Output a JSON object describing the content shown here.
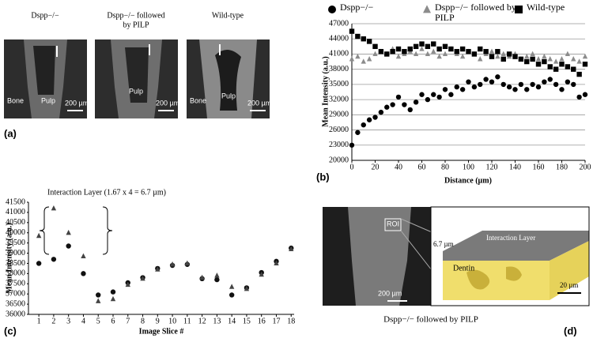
{
  "panel_a": {
    "label": "(a)",
    "images": [
      {
        "title": [
          "Dspp−/−"
        ],
        "bone": "Bone",
        "pulp": "Pulp",
        "scale": "200 µm"
      },
      {
        "title": [
          "Dspp−/− followed",
          "by PILP"
        ],
        "pulp": "Pulp",
        "scale": "200 µm"
      },
      {
        "title": [
          "Wild-type"
        ],
        "bone": "Bone",
        "pulp": "Pulp",
        "scale": "200 µm"
      }
    ]
  },
  "panel_d": {
    "label": "(d)",
    "roi": "ROI",
    "thickness": "6.7 µm",
    "layer": "Interaction  Layer",
    "dentin": "Dentin",
    "scale_left": "200 µm",
    "scale_right": "20 µm",
    "caption": "Dspp−/− followed by PILP"
  },
  "chart_data": [
    {
      "type": "scatter",
      "panel_label": "(b)",
      "x_label": "Distance (µm)",
      "y_label": "Mean Intensity (a.u.)",
      "x": [
        0,
        5,
        10,
        15,
        20,
        25,
        30,
        35,
        40,
        45,
        50,
        55,
        60,
        65,
        70,
        75,
        80,
        85,
        90,
        95,
        100,
        105,
        110,
        115,
        120,
        125,
        130,
        135,
        140,
        145,
        150,
        155,
        160,
        165,
        170,
        175,
        180,
        185,
        190,
        195,
        200
      ],
      "xlim": [
        0,
        200
      ],
      "xticks": [
        0,
        20,
        40,
        60,
        80,
        100,
        120,
        140,
        160,
        180,
        200
      ],
      "ylim": [
        20000,
        47000
      ],
      "yticks": [
        20000,
        23000,
        26000,
        29000,
        32000,
        35000,
        38000,
        41000,
        44000,
        47000
      ],
      "grid": true,
      "series": [
        {
          "name": "Dspp−/−",
          "color": "#000000",
          "marker": "circle",
          "values": [
            23000,
            25500,
            27000,
            28000,
            28500,
            29500,
            30500,
            31000,
            32500,
            31000,
            30000,
            31500,
            33000,
            32000,
            33000,
            32500,
            34000,
            33000,
            34500,
            34000,
            35500,
            34500,
            35000,
            36000,
            35500,
            36500,
            35000,
            34500,
            34000,
            35000,
            34000,
            35000,
            34500,
            35500,
            36000,
            35000,
            34000,
            35500,
            35000,
            32500,
            33000
          ]
        },
        {
          "name": "Dspp−/− followed by PILP",
          "color": "#8c8c8c",
          "marker": "triangle",
          "values": [
            40000,
            40500,
            39500,
            40000,
            41000,
            41500,
            41000,
            42000,
            40500,
            41000,
            41500,
            41000,
            42000,
            41000,
            41500,
            40500,
            41000,
            42000,
            41000,
            40500,
            41500,
            41000,
            40000,
            41000,
            41500,
            40500,
            41000,
            40500,
            41000,
            40000,
            40500,
            41000,
            40000,
            40500,
            40000,
            39500,
            40000,
            41000,
            40000,
            39500,
            40500
          ]
        },
        {
          "name": "Wild-type",
          "color": "#000000",
          "marker": "square",
          "values": [
            45500,
            44500,
            44000,
            43500,
            42500,
            41500,
            41000,
            41500,
            42000,
            41500,
            42000,
            42500,
            43000,
            42500,
            43000,
            42000,
            42500,
            42000,
            41500,
            42000,
            41500,
            41000,
            42000,
            41500,
            40500,
            41500,
            40000,
            41000,
            40500,
            40000,
            39500,
            40000,
            39000,
            39500,
            38500,
            38000,
            39000,
            38500,
            38000,
            37000,
            39000
          ]
        }
      ]
    },
    {
      "type": "scatter",
      "panel_label": "(c)",
      "x_label": "Image Slice #",
      "y_label": "Mean Intensity (a.u.)",
      "annotation": "Interaction  Layer (1.67 x 4 = 6.7 µm)",
      "x": [
        1,
        2,
        3,
        4,
        5,
        6,
        7,
        8,
        9,
        10,
        11,
        12,
        13,
        14,
        15,
        16,
        17,
        18
      ],
      "xlim": [
        0.3,
        18.2
      ],
      "xticks": [
        1,
        2,
        3,
        4,
        5,
        6,
        7,
        8,
        9,
        10,
        11,
        12,
        13,
        14,
        15,
        16,
        17,
        18
      ],
      "ylim": [
        36000,
        41500
      ],
      "yticks": [
        36000,
        36500,
        37000,
        37500,
        38000,
        38500,
        39000,
        39500,
        40000,
        40500,
        41000,
        41500
      ],
      "grid": false,
      "series": [
        {
          "color": "#111111",
          "marker": "circle",
          "values": [
            38500,
            38700,
            39350,
            38000,
            36950,
            37100,
            37550,
            37800,
            38250,
            38400,
            38450,
            37750,
            37700,
            36950,
            37300,
            38050,
            38600,
            39250
          ]
        },
        {
          "color": "#444444",
          "marker": "triangle",
          "values": [
            39850,
            41200,
            40000,
            38850,
            36650,
            36750,
            37450,
            37750,
            38200,
            38450,
            38500,
            37800,
            37900,
            37350,
            37250,
            37950,
            38500,
            39200
          ]
        }
      ]
    }
  ]
}
